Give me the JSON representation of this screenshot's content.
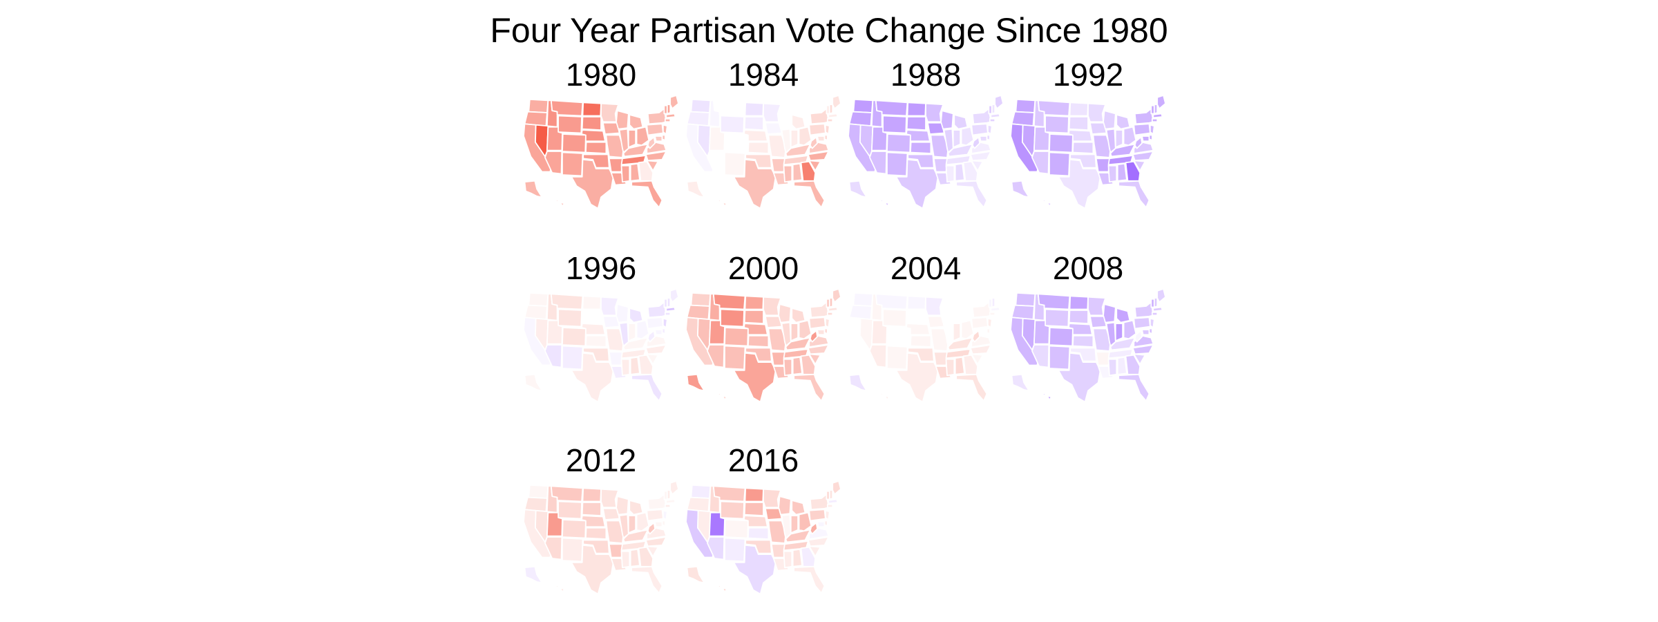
{
  "title": "Four Year Partisan Vote Change Since 1980",
  "colors": {
    "neutral": "#ffffff",
    "republican_gain": "#f44a33",
    "democratic_gain": "#8c4bff",
    "state_border": "#ffffff"
  },
  "states": [
    "WA",
    "OR",
    "CA",
    "NV",
    "ID",
    "MT",
    "WY",
    "UT",
    "AZ",
    "CO",
    "NM",
    "ND",
    "SD",
    "NE",
    "KS",
    "OK",
    "TX",
    "MN",
    "IA",
    "MO",
    "AR",
    "LA",
    "WI",
    "IL",
    "MI",
    "IN",
    "OH",
    "KY",
    "TN",
    "MS",
    "AL",
    "GA",
    "FL",
    "SC",
    "NC",
    "VA",
    "WV",
    "PA",
    "NY",
    "ME",
    "VT",
    "NH",
    "MA",
    "CT",
    "NJ",
    "DE",
    "MD",
    "AK",
    "HI"
  ],
  "panels": [
    {
      "year": "1980",
      "values": {
        "WA": 0.45,
        "OR": 0.5,
        "CA": 0.5,
        "NV": 0.9,
        "ID": 0.6,
        "MT": 0.55,
        "WY": 0.55,
        "UT": 0.55,
        "AZ": 0.5,
        "CO": 0.55,
        "NM": 0.5,
        "ND": 0.8,
        "SD": 0.6,
        "NE": 0.6,
        "KS": 0.55,
        "OK": 0.55,
        "TX": 0.45,
        "MN": 0.25,
        "IA": 0.45,
        "MO": 0.4,
        "AR": 0.55,
        "LA": 0.5,
        "WI": 0.4,
        "IL": 0.4,
        "MI": 0.4,
        "IN": 0.45,
        "OH": 0.45,
        "KY": 0.4,
        "TN": 0.7,
        "MS": 0.5,
        "AL": 0.45,
        "GA": 0.1,
        "FL": 0.5,
        "SC": 0.4,
        "NC": 0.45,
        "VA": 0.35,
        "WV": 0.3,
        "PA": 0.35,
        "NY": 0.35,
        "ME": 0.4,
        "VT": 0.45,
        "NH": 0.5,
        "MA": 0.45,
        "CT": 0.4,
        "NJ": 0.4,
        "DE": 0.35,
        "MD": 0.3,
        "AK": 0.4,
        "HI": 0.3
      }
    },
    {
      "year": "1984",
      "values": {
        "WA": -0.15,
        "OR": -0.1,
        "CA": -0.05,
        "NV": -0.15,
        "ID": -0.05,
        "MT": 0.0,
        "WY": -0.1,
        "UT": 0.05,
        "AZ": 0.0,
        "CO": 0.0,
        "NM": 0.05,
        "ND": -0.15,
        "SD": -0.1,
        "NE": 0.1,
        "KS": 0.1,
        "OK": 0.2,
        "TX": 0.35,
        "MN": -0.1,
        "IA": -0.05,
        "MO": 0.1,
        "AR": 0.3,
        "LA": 0.3,
        "WI": 0.0,
        "IL": 0.05,
        "MI": 0.1,
        "IN": 0.1,
        "OH": 0.15,
        "KY": 0.3,
        "TN": 0.25,
        "MS": 0.35,
        "AL": 0.35,
        "GA": 0.7,
        "FL": 0.4,
        "SC": 0.45,
        "NC": 0.45,
        "VA": 0.3,
        "WV": 0.3,
        "PA": 0.2,
        "NY": 0.2,
        "ME": 0.15,
        "VT": 0.1,
        "NH": 0.2,
        "MA": 0.1,
        "CT": 0.2,
        "NJ": 0.2,
        "DE": 0.2,
        "MD": 0.15,
        "AK": 0.1,
        "HI": 0.25
      }
    },
    {
      "year": "1988",
      "values": {
        "WA": -0.55,
        "OR": -0.5,
        "CA": -0.4,
        "NV": -0.35,
        "ID": -0.45,
        "MT": -0.5,
        "WY": -0.5,
        "UT": -0.45,
        "AZ": -0.35,
        "CO": -0.4,
        "NM": -0.4,
        "ND": -0.55,
        "SD": -0.5,
        "NE": -0.4,
        "KS": -0.45,
        "OK": -0.35,
        "TX": -0.3,
        "MN": -0.35,
        "IA": -0.55,
        "MO": -0.35,
        "AR": -0.3,
        "LA": -0.25,
        "WI": -0.4,
        "IL": -0.25,
        "MI": -0.25,
        "IN": -0.2,
        "OH": -0.15,
        "KY": -0.2,
        "TN": -0.15,
        "MS": -0.1,
        "AL": -0.2,
        "GA": -0.1,
        "FL": -0.15,
        "SC": -0.1,
        "NC": -0.1,
        "VA": -0.1,
        "WV": -0.25,
        "PA": -0.2,
        "NY": -0.2,
        "ME": -0.25,
        "VT": -0.3,
        "NH": -0.15,
        "MA": -0.2,
        "CT": -0.25,
        "NJ": -0.2,
        "DE": -0.2,
        "MD": -0.2,
        "AK": -0.2,
        "HI": -0.35
      }
    },
    {
      "year": "1992",
      "values": {
        "WA": -0.5,
        "OR": -0.5,
        "CA": -0.6,
        "NV": -0.5,
        "ID": -0.3,
        "MT": -0.35,
        "WY": -0.35,
        "UT": -0.35,
        "AZ": -0.3,
        "CO": -0.45,
        "NM": -0.45,
        "ND": -0.15,
        "SD": -0.2,
        "NE": -0.2,
        "KS": -0.25,
        "OK": -0.2,
        "TX": -0.15,
        "MN": -0.2,
        "IA": -0.25,
        "MO": -0.35,
        "AR": -0.5,
        "LA": -0.35,
        "WI": -0.25,
        "IL": -0.35,
        "MI": -0.3,
        "IN": -0.25,
        "OH": -0.3,
        "KY": -0.45,
        "TN": -0.6,
        "MS": -0.3,
        "AL": -0.4,
        "GA": -0.8,
        "FL": -0.3,
        "SC": -0.3,
        "NC": -0.35,
        "VA": -0.3,
        "WV": -0.4,
        "PA": -0.4,
        "NY": -0.4,
        "ME": -0.45,
        "VT": -0.5,
        "NH": -0.4,
        "MA": -0.5,
        "CT": -0.45,
        "NJ": -0.4,
        "DE": -0.45,
        "MD": -0.45,
        "AK": -0.3,
        "HI": -0.3
      }
    },
    {
      "year": "1996",
      "values": {
        "WA": 0.05,
        "OR": 0.05,
        "CA": -0.05,
        "NV": 0.1,
        "ID": 0.15,
        "MT": 0.15,
        "WY": 0.15,
        "UT": 0.1,
        "AZ": -0.15,
        "CO": 0.15,
        "NM": -0.1,
        "ND": 0.05,
        "SD": 0.0,
        "NE": 0.1,
        "KS": 0.05,
        "OK": 0.15,
        "TX": 0.1,
        "MN": -0.1,
        "IA": -0.05,
        "MO": 0.1,
        "AR": -0.05,
        "LA": -0.1,
        "WI": -0.05,
        "IL": -0.15,
        "MI": -0.15,
        "IN": 0.05,
        "OH": -0.05,
        "KY": 0.05,
        "TN": 0.1,
        "MS": 0.1,
        "AL": 0.15,
        "GA": 0.1,
        "FL": -0.15,
        "SC": 0.05,
        "NC": 0.1,
        "VA": 0.05,
        "WV": -0.1,
        "PA": -0.05,
        "NY": -0.15,
        "ME": -0.1,
        "VT": -0.15,
        "NH": -0.15,
        "MA": -0.35,
        "CT": -0.15,
        "NJ": -0.2,
        "DE": -0.1,
        "MD": -0.05,
        "AK": 0.05,
        "HI": 0.0
      }
    },
    {
      "year": "2000",
      "values": {
        "WA": 0.25,
        "OR": 0.35,
        "CA": 0.25,
        "NV": 0.35,
        "ID": 0.45,
        "MT": 0.6,
        "WY": 0.6,
        "UT": 0.55,
        "AZ": 0.35,
        "CO": 0.4,
        "NM": 0.35,
        "ND": 0.5,
        "SD": 0.45,
        "NE": 0.45,
        "KS": 0.35,
        "OK": 0.35,
        "TX": 0.5,
        "MN": 0.2,
        "IA": 0.2,
        "MO": 0.3,
        "AR": 0.4,
        "LA": 0.35,
        "WI": 0.2,
        "IL": 0.2,
        "MI": 0.2,
        "IN": 0.25,
        "OH": 0.25,
        "KY": 0.35,
        "TN": 0.4,
        "MS": 0.35,
        "AL": 0.35,
        "GA": 0.3,
        "FL": 0.3,
        "SC": 0.3,
        "NC": 0.25,
        "VA": 0.25,
        "WV": 0.55,
        "PA": 0.2,
        "NY": 0.15,
        "ME": 0.25,
        "VT": 0.3,
        "NH": 0.3,
        "MA": 0.15,
        "CT": 0.2,
        "NJ": 0.15,
        "DE": 0.2,
        "MD": 0.15,
        "AK": 0.55,
        "HI": 0.25
      }
    },
    {
      "year": "2004",
      "values": {
        "WA": -0.05,
        "OR": -0.05,
        "CA": 0.0,
        "NV": 0.05,
        "ID": 0.05,
        "MT": -0.05,
        "WY": 0.05,
        "UT": 0.1,
        "AZ": 0.1,
        "CO": 0.0,
        "NM": 0.05,
        "ND": -0.05,
        "SD": 0.0,
        "NE": 0.05,
        "KS": 0.05,
        "OK": 0.15,
        "TX": 0.1,
        "MN": -0.1,
        "IA": 0.05,
        "MO": 0.05,
        "AR": 0.15,
        "LA": 0.2,
        "WI": 0.0,
        "IL": 0.0,
        "MI": 0.0,
        "IN": 0.1,
        "OH": 0.05,
        "KY": 0.15,
        "TN": 0.2,
        "MS": 0.15,
        "AL": 0.2,
        "GA": 0.1,
        "FL": 0.15,
        "SC": 0.05,
        "NC": 0.1,
        "VA": 0.05,
        "WV": 0.2,
        "PA": 0.05,
        "NY": 0.05,
        "ME": 0.0,
        "VT": -0.05,
        "NH": -0.1,
        "MA": -0.05,
        "CT": 0.05,
        "NJ": 0.1,
        "DE": 0.05,
        "MD": 0.0,
        "AK": -0.15,
        "HI": 0.1
      }
    },
    {
      "year": "2008",
      "values": {
        "WA": -0.35,
        "OR": -0.35,
        "CA": -0.4,
        "NV": -0.45,
        "ID": -0.3,
        "MT": -0.45,
        "WY": -0.3,
        "UT": -0.4,
        "AZ": -0.2,
        "CO": -0.45,
        "NM": -0.35,
        "ND": -0.5,
        "SD": -0.3,
        "NE": -0.35,
        "KS": -0.25,
        "OK": -0.1,
        "TX": -0.25,
        "MN": -0.3,
        "IA": -0.35,
        "MO": -0.25,
        "AR": 0.05,
        "LA": -0.05,
        "WI": -0.45,
        "IL": -0.45,
        "MI": -0.5,
        "IN": -0.55,
        "OH": -0.35,
        "KY": -0.2,
        "TN": -0.1,
        "MS": -0.2,
        "AL": -0.1,
        "GA": -0.3,
        "FL": -0.3,
        "SC": -0.25,
        "NC": -0.35,
        "VA": -0.35,
        "WV": -0.05,
        "PA": -0.3,
        "NY": -0.3,
        "ME": -0.25,
        "VT": -0.45,
        "NH": -0.3,
        "MA": -0.3,
        "CT": -0.3,
        "NJ": -0.25,
        "DE": -0.35,
        "MD": -0.3,
        "AK": -0.15,
        "HI": -0.55
      }
    },
    {
      "year": "2012",
      "values": {
        "WA": 0.05,
        "OR": 0.15,
        "CA": 0.1,
        "NV": 0.15,
        "ID": 0.25,
        "MT": 0.3,
        "WY": 0.2,
        "UT": 0.55,
        "AZ": 0.2,
        "CO": 0.2,
        "NM": 0.1,
        "ND": 0.3,
        "SD": 0.25,
        "NE": 0.25,
        "KS": 0.2,
        "OK": 0.2,
        "TX": 0.15,
        "MN": 0.15,
        "IA": 0.15,
        "MO": 0.2,
        "AR": 0.3,
        "LA": 0.15,
        "WI": 0.15,
        "IL": 0.2,
        "MI": 0.15,
        "IN": 0.25,
        "OH": 0.1,
        "KY": 0.2,
        "TN": 0.15,
        "MS": 0.1,
        "AL": 0.15,
        "GA": 0.15,
        "FL": 0.1,
        "SC": 0.1,
        "NC": 0.15,
        "VA": 0.1,
        "WV": 0.3,
        "PA": 0.1,
        "NY": 0.05,
        "ME": 0.1,
        "VT": 0.05,
        "NH": 0.1,
        "MA": 0.05,
        "CT": 0.1,
        "NJ": -0.05,
        "DE": 0.05,
        "MD": 0.05,
        "AK": -0.1,
        "HI": 0.15
      }
    },
    {
      "year": "2016",
      "values": {
        "WA": -0.1,
        "OR": 0.1,
        "CA": -0.3,
        "NV": 0.1,
        "ID": 0.2,
        "MT": 0.3,
        "WY": 0.25,
        "UT": -0.75,
        "AZ": -0.2,
        "CO": 0.05,
        "NM": -0.1,
        "ND": 0.55,
        "SD": 0.35,
        "NE": 0.2,
        "KS": -0.1,
        "OK": 0.2,
        "TX": -0.2,
        "MN": 0.2,
        "IA": 0.45,
        "MO": 0.3,
        "AR": 0.2,
        "LA": 0.1,
        "WI": 0.3,
        "IL": 0.05,
        "MI": 0.3,
        "IN": 0.3,
        "OH": 0.35,
        "KY": 0.3,
        "TN": 0.25,
        "MS": 0.1,
        "AL": 0.15,
        "GA": -0.1,
        "FL": 0.1,
        "SC": 0.1,
        "NC": 0.1,
        "VA": -0.05,
        "WV": 0.45,
        "PA": 0.25,
        "NY": 0.15,
        "ME": 0.2,
        "VT": 0.2,
        "NH": 0.15,
        "MA": -0.1,
        "CT": 0.1,
        "NJ": 0.1,
        "DE": 0.1,
        "MD": -0.05,
        "AK": 0.15,
        "HI": 0.25
      }
    }
  ]
}
